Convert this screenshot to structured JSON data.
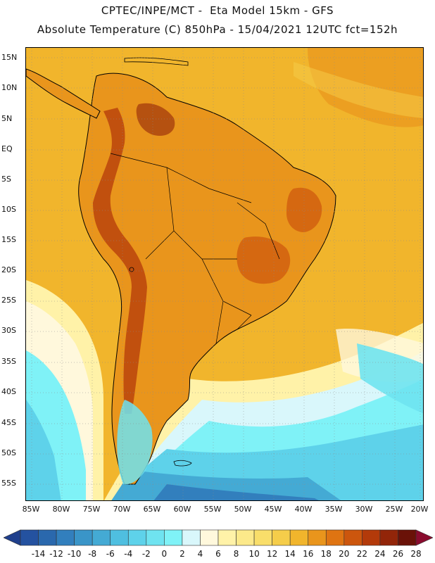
{
  "header": {
    "line1": "CPTEC/INPE/MCT -  Eta Model 15km - GFS",
    "line2": "Absolute Temperature (C) 850hPa - 15/04/2021 12UTC fct=152h"
  },
  "map": {
    "lat_labels": [
      "15N",
      "10N",
      "5N",
      "EQ",
      "5S",
      "10S",
      "15S",
      "20S",
      "25S",
      "30S",
      "35S",
      "40S",
      "45S",
      "50S",
      "55S"
    ],
    "lon_labels": [
      "85W",
      "80W",
      "75W",
      "70W",
      "65W",
      "60W",
      "55W",
      "50W",
      "45W",
      "40W",
      "35W",
      "30W",
      "25W",
      "20W"
    ],
    "ocean_color": "#f1b52c",
    "land_outline_color": "#000000"
  },
  "colorbar": {
    "labels": [
      "-14",
      "-12",
      "-10",
      "-8",
      "-6",
      "-4",
      "-2",
      "0",
      "2",
      "4",
      "6",
      "8",
      "10",
      "12",
      "14",
      "16",
      "18",
      "20",
      "22",
      "24",
      "26",
      "28"
    ],
    "colors": [
      "#1f3f8c",
      "#2452a0",
      "#2a68ad",
      "#327fbd",
      "#3a95c8",
      "#44aad4",
      "#4fbfe0",
      "#5ed2ea",
      "#6fe3f0",
      "#7ff2f7",
      "#d9f7fb",
      "#fff8dc",
      "#fff2a8",
      "#fce98a",
      "#f9de6a",
      "#f5cd4a",
      "#f1b52c",
      "#e9951c",
      "#df7412",
      "#cc560d",
      "#b33a0a",
      "#922509",
      "#6a1208",
      "#8a0c2e"
    ]
  }
}
